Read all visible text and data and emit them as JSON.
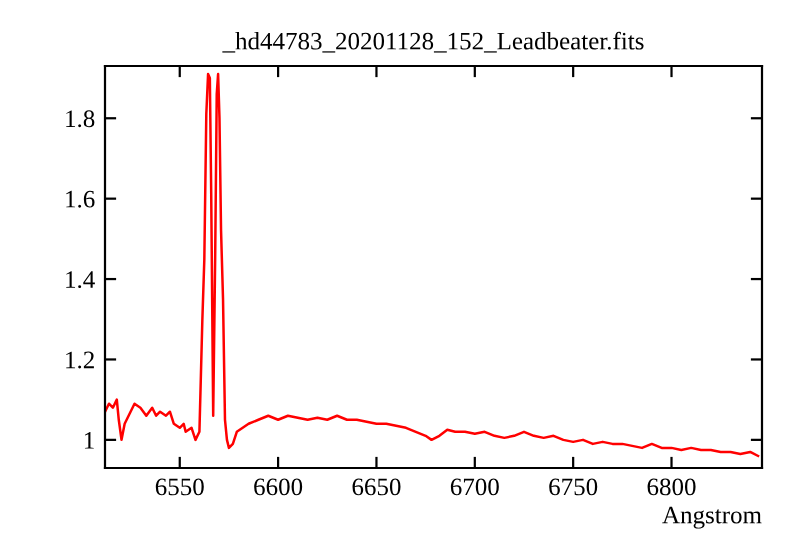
{
  "chart_data": {
    "type": "line",
    "title": "_hd44783_20201128_152_Leadbeater.fits",
    "xlabel": "Angstrom",
    "x": [
      6512,
      6514,
      6516,
      6518,
      6519,
      6520.4,
      6522,
      6524,
      6527,
      6530,
      6533,
      6536,
      6538,
      6540,
      6543,
      6545,
      6547,
      6550,
      6552,
      6553,
      6556,
      6558,
      6560,
      6561.5,
      6562.5,
      6563.5,
      6564.4,
      6565.3,
      6566,
      6567,
      6568,
      6568.8,
      6569.5,
      6570.2,
      6571,
      6572,
      6573,
      6574,
      6575,
      6577,
      6579,
      6582,
      6585,
      6590,
      6595,
      6600,
      6605,
      6610,
      6615,
      6620,
      6625,
      6630,
      6635,
      6640,
      6645,
      6650,
      6655,
      6660,
      6665,
      6670,
      6675,
      6678,
      6682,
      6686,
      6690,
      6695,
      6700,
      6705,
      6710,
      6715,
      6720,
      6725,
      6730,
      6735,
      6740,
      6745,
      6750,
      6755,
      6760,
      6765,
      6770,
      6775,
      6780,
      6785,
      6790,
      6795,
      6800,
      6805,
      6810,
      6815,
      6820,
      6825,
      6830,
      6835,
      6840,
      6844
    ],
    "series": [
      {
        "color": "#ff0000",
        "values": [
          1.07,
          1.09,
          1.08,
          1.1,
          1.05,
          1.0,
          1.04,
          1.06,
          1.09,
          1.08,
          1.06,
          1.08,
          1.06,
          1.07,
          1.06,
          1.07,
          1.04,
          1.03,
          1.04,
          1.02,
          1.03,
          1.0,
          1.02,
          1.3,
          1.45,
          1.81,
          1.91,
          1.9,
          1.61,
          1.06,
          1.45,
          1.86,
          1.91,
          1.8,
          1.52,
          1.35,
          1.05,
          1.0,
          0.98,
          0.99,
          1.02,
          1.03,
          1.04,
          1.05,
          1.06,
          1.05,
          1.06,
          1.055,
          1.05,
          1.055,
          1.05,
          1.06,
          1.05,
          1.05,
          1.045,
          1.04,
          1.04,
          1.035,
          1.03,
          1.02,
          1.01,
          1.0,
          1.01,
          1.025,
          1.02,
          1.02,
          1.015,
          1.02,
          1.01,
          1.005,
          1.01,
          1.02,
          1.01,
          1.005,
          1.01,
          1.0,
          0.995,
          1.0,
          0.99,
          0.995,
          0.99,
          0.99,
          0.985,
          0.98,
          0.99,
          0.98,
          0.98,
          0.975,
          0.98,
          0.975,
          0.975,
          0.97,
          0.97,
          0.965,
          0.97,
          0.96
        ]
      }
    ],
    "xlim": [
      6512,
      6846
    ],
    "ylim": [
      0.93,
      1.93
    ],
    "xticks": [
      6550,
      6600,
      6650,
      6700,
      6750,
      6800
    ],
    "yticks": [
      1,
      1.2,
      1.4,
      1.6,
      1.8
    ],
    "grid": false,
    "legend": false,
    "marker": "none",
    "line_style": "solid"
  }
}
